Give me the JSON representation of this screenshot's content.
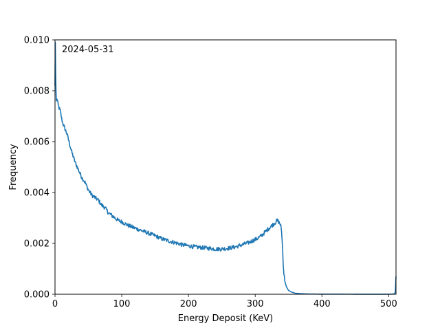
{
  "chart_data": {
    "type": "line",
    "title": "",
    "xlabel": "Energy Deposit (KeV)",
    "ylabel": "Frequency",
    "xlim": [
      0,
      511
    ],
    "ylim": [
      0,
      0.01
    ],
    "x_ticks": [
      0,
      100,
      200,
      300,
      400,
      500
    ],
    "y_ticks": [
      0.0,
      0.002,
      0.004,
      0.006,
      0.008,
      0.01
    ],
    "x_tick_labels": [
      "0",
      "100",
      "200",
      "300",
      "400",
      "500"
    ],
    "y_tick_labels": [
      "0.000",
      "0.002",
      "0.004",
      "0.006",
      "0.008",
      "0.010"
    ],
    "grid": false,
    "annotation": "2024-05-31",
    "line_color": "#1f77b4",
    "series": [
      {
        "x": [
          0,
          0.5,
          1,
          1.5,
          2,
          3,
          5,
          8,
          10,
          12,
          15,
          18,
          20,
          25,
          30,
          35,
          40,
          45,
          50,
          55,
          60,
          65,
          70,
          75,
          80,
          85,
          90,
          95,
          100,
          110,
          120,
          130,
          140,
          150,
          160,
          170,
          180,
          190,
          200,
          210,
          220,
          230,
          240,
          250,
          260,
          270,
          280,
          290,
          300,
          305,
          310,
          315,
          320,
          325,
          330,
          333,
          335,
          337,
          338,
          339,
          340,
          341,
          342,
          343,
          345,
          347,
          350,
          355,
          360,
          370,
          380,
          400,
          450,
          500,
          505,
          509,
          510,
          510.5,
          511
        ],
        "y": [
          0.0082,
          0.0099,
          0.0087,
          0.008,
          0.0076,
          0.0077,
          0.0074,
          0.0072,
          0.0069,
          0.0067,
          0.0065,
          0.0063,
          0.0061,
          0.0056,
          0.0052,
          0.0049,
          0.0046,
          0.0044,
          0.0041,
          0.0039,
          0.0038,
          0.0037,
          0.0035,
          0.0034,
          0.0032,
          0.0031,
          0.003,
          0.0029,
          0.00285,
          0.0027,
          0.0026,
          0.0025,
          0.0024,
          0.0023,
          0.00218,
          0.0021,
          0.00203,
          0.00195,
          0.0019,
          0.00186,
          0.00183,
          0.00181,
          0.00178,
          0.00178,
          0.00181,
          0.00186,
          0.00194,
          0.00203,
          0.00215,
          0.00222,
          0.00232,
          0.00245,
          0.00258,
          0.0027,
          0.00282,
          0.0029,
          0.00285,
          0.00278,
          0.0027,
          0.0026,
          0.0023,
          0.0018,
          0.0012,
          0.0008,
          0.00045,
          0.00028,
          0.00015,
          8e-05,
          4e-05,
          2e-05,
          1e-05,
          5e-06,
          3e-06,
          2e-06,
          5e-06,
          2e-05,
          0.0001,
          0.0004,
          0.0007
        ]
      }
    ]
  }
}
